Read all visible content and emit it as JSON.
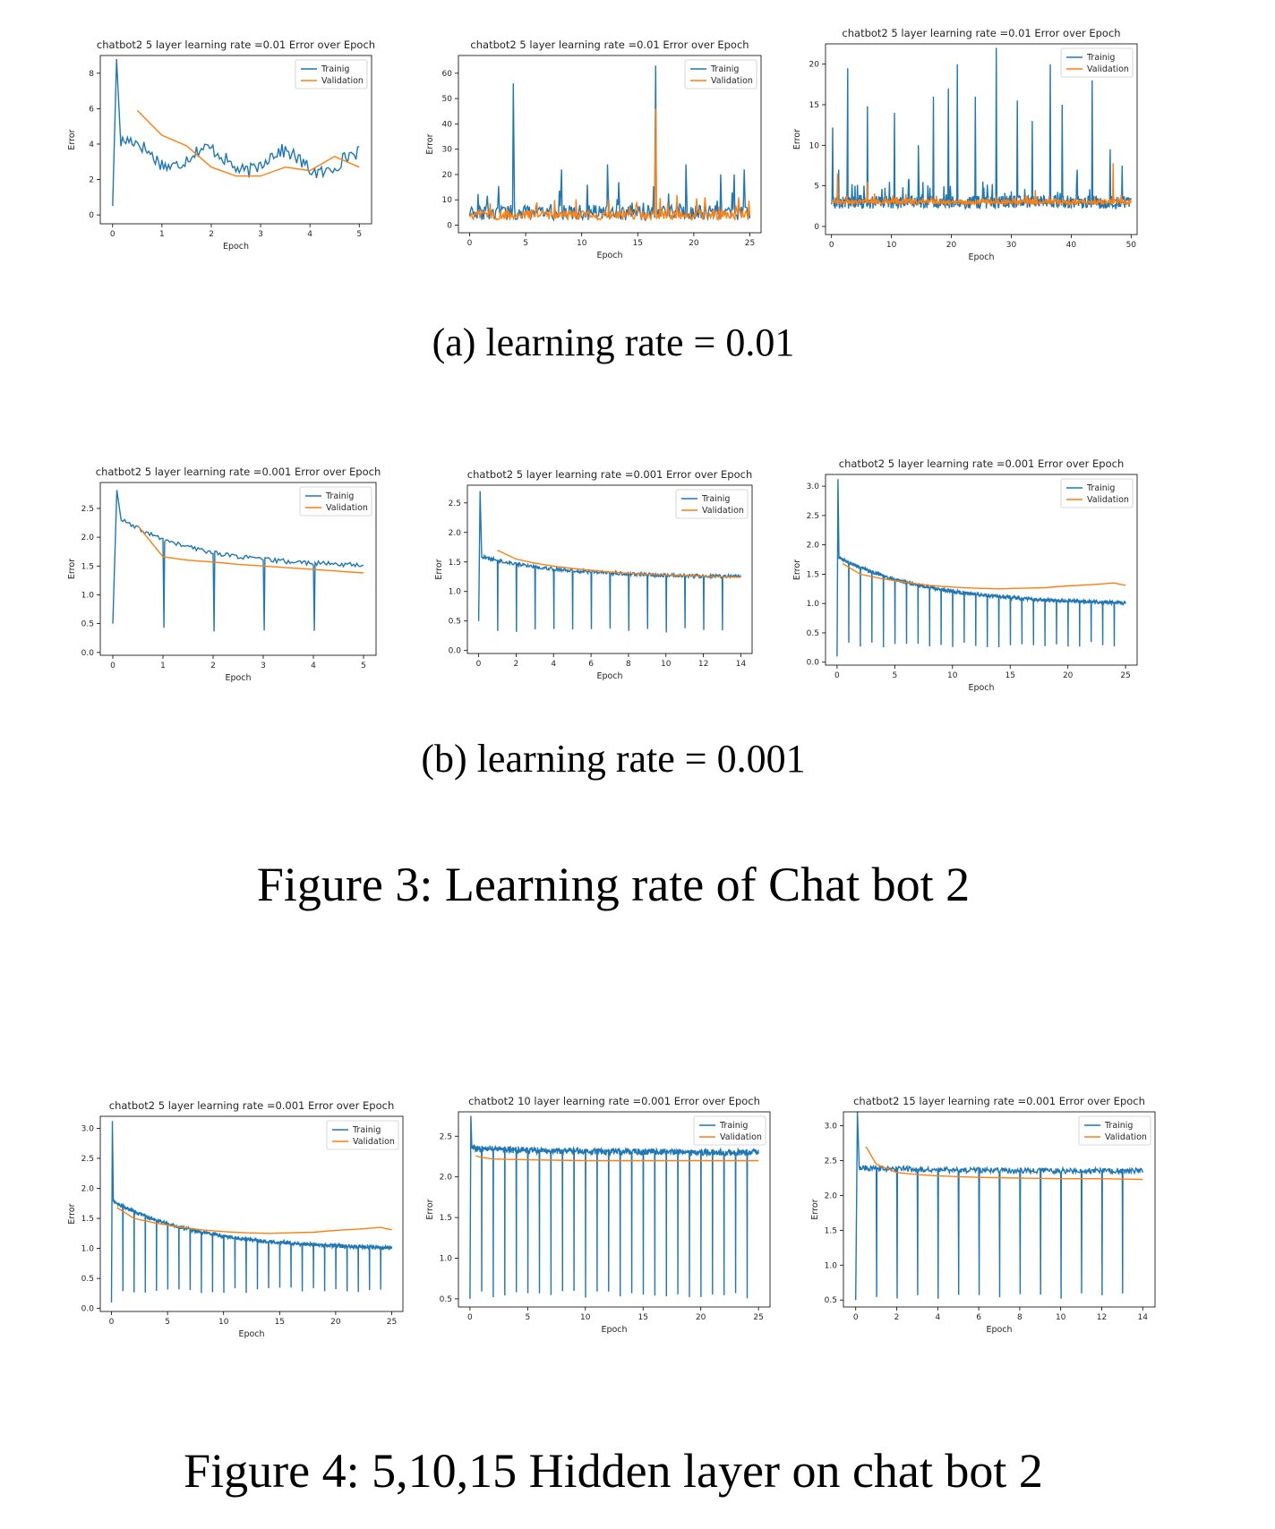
{
  "captions": {
    "a": "(a)  learning rate = 0.01",
    "b": "(b)  learning rate = 0.001",
    "fig3": "Figure 3: Learning rate of Chat bot 2",
    "fig4": "Figure 4: 5,10,15 Hidden layer on chat bot 2"
  },
  "colors": {
    "training": "#1f77b4",
    "validation": "#ff7f0e"
  },
  "chart_data": [
    {
      "type": "line",
      "title": "chatbot2 5 layer learning rate =0.01 Error over Epoch",
      "xlabel": "Epoch",
      "ylabel": "Error",
      "xlim": [
        -0.25,
        5.25
      ],
      "ylim": [
        -0.5,
        9.0
      ],
      "xticks": [
        0,
        1,
        2,
        3,
        4,
        5
      ],
      "yticks": [
        0,
        2,
        4,
        6,
        8
      ],
      "legend": "top-right",
      "series": [
        {
          "name": "Trainig",
          "kind": "training",
          "generator": "smooth",
          "epochs": 5,
          "peak": 8.8,
          "plateau_start": 3.8,
          "plateau_end": 2.9,
          "noise": 0.4,
          "drops": 0,
          "drop_to": 1.5
        },
        {
          "name": "Validation",
          "kind": "validation",
          "x": [
            0.5,
            1.0,
            1.5,
            2.0,
            2.5,
            3.0,
            3.5,
            4.0,
            4.5,
            5.0
          ],
          "y": [
            5.9,
            4.5,
            3.9,
            2.7,
            2.2,
            2.2,
            2.7,
            2.5,
            3.3,
            2.7
          ]
        }
      ]
    },
    {
      "type": "line",
      "title": "chatbot2 5 layer learning rate =0.01 Error over Epoch",
      "xlabel": "Epoch",
      "ylabel": "Error",
      "xlim": [
        -1,
        26
      ],
      "ylim": [
        -3,
        67
      ],
      "xticks": [
        0,
        5,
        10,
        15,
        20,
        25
      ],
      "yticks": [
        0,
        10,
        20,
        30,
        40,
        50,
        60
      ],
      "legend": "top-right",
      "series": [
        {
          "name": "Trainig",
          "kind": "training",
          "generator": "spiky",
          "epochs": 25,
          "base": 5.0,
          "noise": 3.0,
          "spikes": [
            [
              3.9,
              56
            ],
            [
              8.2,
              22
            ],
            [
              10.5,
              16
            ],
            [
              12.3,
              24
            ],
            [
              13.3,
              17
            ],
            [
              16.6,
              63
            ],
            [
              19.3,
              24
            ],
            [
              22.4,
              20
            ],
            [
              23.6,
              20
            ],
            [
              24.5,
              22
            ]
          ]
        },
        {
          "name": "Validation",
          "kind": "validation",
          "generator": "spiky",
          "epochs": 25,
          "base": 4.0,
          "noise": 2.0,
          "spikes": [
            [
              16.6,
              46
            ],
            [
              6.0,
              9
            ],
            [
              18.5,
              12
            ],
            [
              21.0,
              11
            ],
            [
              24.0,
              11
            ]
          ]
        }
      ]
    },
    {
      "type": "line",
      "title": "chatbot2 5 layer learning rate =0.01 Error over Epoch",
      "xlabel": "Epoch",
      "ylabel": "Error",
      "xlim": [
        -1,
        51
      ],
      "ylim": [
        -1,
        22.5
      ],
      "xticks": [
        0,
        10,
        20,
        30,
        40,
        50
      ],
      "yticks": [
        0,
        5,
        10,
        15,
        20
      ],
      "legend": "top-right",
      "series": [
        {
          "name": "Trainig",
          "kind": "training",
          "generator": "spiky",
          "epochs": 50,
          "base": 3.0,
          "noise": 0.8,
          "spikes": [
            [
              0.2,
              12.2
            ],
            [
              1.2,
              7
            ],
            [
              2.7,
              19.5
            ],
            [
              6.0,
              14.8
            ],
            [
              10.5,
              14
            ],
            [
              14.5,
              10
            ],
            [
              17.0,
              16
            ],
            [
              19.5,
              17
            ],
            [
              21.0,
              20
            ],
            [
              24.0,
              16
            ],
            [
              27.5,
              22
            ],
            [
              31.0,
              15.5
            ],
            [
              33.5,
              13
            ],
            [
              36.5,
              20
            ],
            [
              38.5,
              15
            ],
            [
              41.0,
              7
            ],
            [
              43.5,
              18
            ],
            [
              46.5,
              9.5
            ],
            [
              48.5,
              7.5
            ]
          ]
        },
        {
          "name": "Validation",
          "kind": "validation",
          "generator": "spiky",
          "epochs": 50,
          "base": 3.0,
          "noise": 0.3,
          "spikes": [
            [
              1.0,
              6.5
            ],
            [
              6.0,
              5.5
            ],
            [
              47.0,
              7.8
            ],
            [
              34.0,
              4.5
            ]
          ]
        }
      ]
    },
    {
      "type": "line",
      "title": "chatbot2 5 layer learning rate =0.001 Error over Epoch",
      "xlabel": "Epoch",
      "ylabel": "Error",
      "xlim": [
        -0.25,
        5.25
      ],
      "ylim": [
        -0.05,
        2.95
      ],
      "xticks": [
        0,
        1,
        2,
        3,
        4,
        5
      ],
      "yticks": [
        0.0,
        0.5,
        1.0,
        1.5,
        2.0,
        2.5
      ],
      "legend": "top-right",
      "series": [
        {
          "name": "Trainig",
          "kind": "training",
          "generator": "smooth",
          "epochs": 5,
          "peak": 2.82,
          "plateau_start": 2.4,
          "plateau_end": 1.48,
          "noise": 0.04,
          "drops": 4,
          "drop_to": 0.35
        },
        {
          "name": "Validation",
          "kind": "validation",
          "x": [
            0.5,
            1.0,
            1.5,
            2.0,
            2.5,
            3.0,
            3.5,
            4.0,
            4.5,
            5.0
          ],
          "y": [
            2.2,
            1.66,
            1.6,
            1.57,
            1.53,
            1.5,
            1.47,
            1.44,
            1.41,
            1.38
          ]
        }
      ]
    },
    {
      "type": "line",
      "title": "chatbot2 5 layer learning rate =0.001 Error over Epoch",
      "xlabel": "Epoch",
      "ylabel": "Error",
      "xlim": [
        -0.6,
        14.6
      ],
      "ylim": [
        -0.05,
        2.8
      ],
      "xticks": [
        0,
        2,
        4,
        6,
        8,
        10,
        12,
        14
      ],
      "yticks": [
        0.0,
        0.5,
        1.0,
        1.5,
        2.0,
        2.5
      ],
      "legend": "top-right",
      "series": [
        {
          "name": "Trainig",
          "kind": "training",
          "generator": "smooth",
          "epochs": 14,
          "peak": 2.7,
          "plateau_start": 1.6,
          "plateau_end": 1.24,
          "noise": 0.03,
          "drops": 13,
          "drop_to": 0.3
        },
        {
          "name": "Validation",
          "kind": "validation",
          "x": [
            1.0,
            2.0,
            3.0,
            4.0,
            5.0,
            6.0,
            7.0,
            8.0,
            9.0,
            10.0,
            11.0,
            12.0,
            13.0,
            14.0
          ],
          "y": [
            1.7,
            1.55,
            1.48,
            1.43,
            1.39,
            1.36,
            1.33,
            1.31,
            1.29,
            1.28,
            1.27,
            1.26,
            1.25,
            1.24
          ]
        }
      ]
    },
    {
      "type": "line",
      "title": "chatbot2 5 layer learning rate =0.001 Error over Epoch",
      "xlabel": "Epoch",
      "ylabel": "Error",
      "xlim": [
        -1,
        26
      ],
      "ylim": [
        -0.05,
        3.2
      ],
      "xticks": [
        0,
        5,
        10,
        15,
        20,
        25
      ],
      "yticks": [
        0.0,
        0.5,
        1.0,
        1.5,
        2.0,
        2.5,
        3.0
      ],
      "legend": "top-right",
      "series": [
        {
          "name": "Trainig",
          "kind": "training",
          "generator": "smooth",
          "epochs": 25,
          "peak": 3.12,
          "plateau_start": 1.8,
          "plateau_end": 0.98,
          "noise": 0.03,
          "drops": 24,
          "drop_to": 0.25
        },
        {
          "name": "Validation",
          "kind": "validation",
          "x": [
            0.5,
            2,
            4,
            6,
            8,
            10,
            12,
            14,
            16,
            18,
            20,
            22,
            24,
            25
          ],
          "y": [
            1.68,
            1.5,
            1.42,
            1.36,
            1.31,
            1.28,
            1.26,
            1.25,
            1.26,
            1.27,
            1.3,
            1.32,
            1.35,
            1.31
          ]
        }
      ]
    },
    {
      "type": "line",
      "title": "chatbot2 5 layer learning rate =0.001 Error over Epoch",
      "xlabel": "Epoch",
      "ylabel": "Error",
      "xlim": [
        -1,
        26
      ],
      "ylim": [
        -0.05,
        3.2
      ],
      "xticks": [
        0,
        5,
        10,
        15,
        20,
        25
      ],
      "yticks": [
        0.0,
        0.5,
        1.0,
        1.5,
        2.0,
        2.5,
        3.0
      ],
      "legend": "top-right",
      "series": [
        {
          "name": "Trainig",
          "kind": "training",
          "generator": "smooth",
          "epochs": 25,
          "peak": 3.12,
          "plateau_start": 1.8,
          "plateau_end": 0.98,
          "noise": 0.03,
          "drops": 24,
          "drop_to": 0.25
        },
        {
          "name": "Validation",
          "kind": "validation",
          "x": [
            0.5,
            2,
            4,
            6,
            8,
            10,
            12,
            14,
            16,
            18,
            20,
            22,
            24,
            25
          ],
          "y": [
            1.68,
            1.5,
            1.42,
            1.36,
            1.31,
            1.28,
            1.26,
            1.25,
            1.26,
            1.27,
            1.3,
            1.32,
            1.35,
            1.31
          ]
        }
      ]
    },
    {
      "type": "line",
      "title": "chatbot2 10 layer learning rate =0.001 Error over Epoch",
      "xlabel": "Epoch",
      "ylabel": "Error",
      "xlim": [
        -1,
        26
      ],
      "ylim": [
        0.4,
        2.8
      ],
      "xticks": [
        0,
        5,
        10,
        15,
        20,
        25
      ],
      "yticks": [
        0.5,
        1.0,
        1.5,
        2.0,
        2.5
      ],
      "legend": "top-right",
      "series": [
        {
          "name": "Trainig",
          "kind": "training",
          "generator": "smooth",
          "epochs": 25,
          "peak": 2.75,
          "plateau_start": 2.35,
          "plateau_end": 2.3,
          "noise": 0.04,
          "drops": 24,
          "drop_to": 0.5
        },
        {
          "name": "Validation",
          "kind": "validation",
          "x": [
            0.5,
            1,
            2,
            5,
            10,
            15,
            20,
            25
          ],
          "y": [
            2.26,
            2.24,
            2.22,
            2.21,
            2.2,
            2.2,
            2.2,
            2.2
          ]
        }
      ]
    },
    {
      "type": "line",
      "title": "chatbot2 15 layer learning rate =0.001 Error over Epoch",
      "xlabel": "Epoch",
      "ylabel": "Error",
      "xlim": [
        -0.6,
        14.6
      ],
      "ylim": [
        0.4,
        3.2
      ],
      "xticks": [
        0,
        2,
        4,
        6,
        8,
        10,
        12,
        14
      ],
      "yticks": [
        0.5,
        1.0,
        1.5,
        2.0,
        2.5,
        3.0
      ],
      "legend": "top-right",
      "series": [
        {
          "name": "Trainig",
          "kind": "training",
          "generator": "smooth",
          "epochs": 14,
          "peak": 3.2,
          "plateau_start": 2.4,
          "plateau_end": 2.35,
          "noise": 0.04,
          "drops": 13,
          "drop_to": 0.5
        },
        {
          "name": "Validation",
          "kind": "validation",
          "x": [
            0.5,
            1,
            2,
            3,
            4,
            6,
            8,
            10,
            12,
            14
          ],
          "y": [
            2.7,
            2.45,
            2.33,
            2.3,
            2.28,
            2.26,
            2.25,
            2.24,
            2.24,
            2.23
          ]
        }
      ]
    }
  ]
}
